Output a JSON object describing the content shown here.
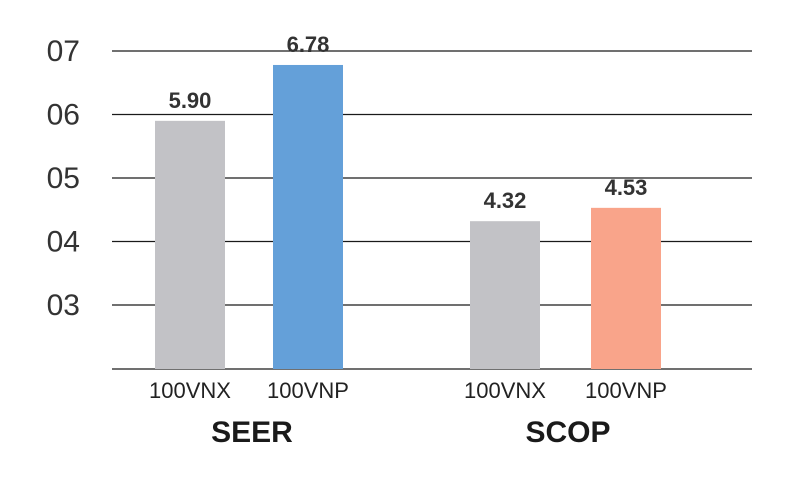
{
  "chart_data": {
    "type": "bar",
    "y_tick_labels": [
      "03",
      "04",
      "05",
      "06",
      "07"
    ],
    "y_tick_values": [
      3,
      4,
      5,
      6,
      7
    ],
    "ylim": [
      2,
      7
    ],
    "grid": true,
    "groups": [
      {
        "name": "SEER",
        "bars": [
          {
            "category": "100VNX",
            "value": 5.9,
            "label": "5.90",
            "color": "#c2c2c6"
          },
          {
            "category": "100VNP",
            "value": 6.78,
            "label": "6.78",
            "color": "#64a0d9"
          }
        ]
      },
      {
        "name": "SCOP",
        "bars": [
          {
            "category": "100VNX",
            "value": 4.32,
            "label": "4.32",
            "color": "#c2c2c6"
          },
          {
            "category": "100VNP",
            "value": 4.53,
            "label": "4.53",
            "color": "#f9a48a"
          }
        ]
      }
    ]
  }
}
